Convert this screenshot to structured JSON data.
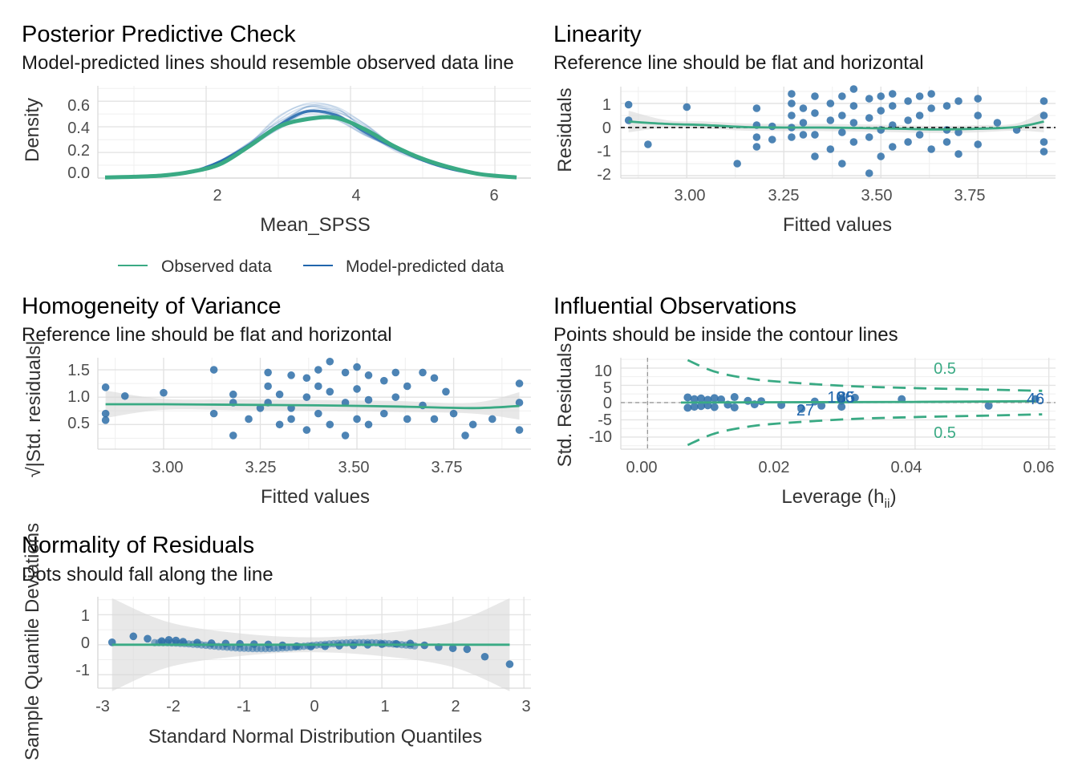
{
  "colors": {
    "observed": "#3aaa84",
    "predicted": "#2166ac",
    "points": "#2e6fa8",
    "smooth": "#3aaa84",
    "band": "#d8d8d8",
    "contour": "#3aaa84"
  },
  "panels": {
    "ppc": {
      "title": "Posterior Predictive Check",
      "subtitle": "Model-predicted lines should resemble observed data line",
      "xlabel": "Mean_SPSS",
      "ylabel": "Density",
      "xticks": [
        "2",
        "4",
        "6"
      ],
      "yticks": [
        "0.0",
        "0.2",
        "0.4",
        "0.6"
      ],
      "legend": [
        "Observed data",
        "Model-predicted data"
      ]
    },
    "linearity": {
      "title": "Linearity",
      "subtitle": "Reference line should be flat and horizontal",
      "xlabel": "Fitted values",
      "ylabel": "Residuals",
      "xticks": [
        "3.00",
        "3.25",
        "3.50",
        "3.75"
      ],
      "yticks": [
        "-2",
        "-1",
        "0",
        "1"
      ]
    },
    "homogeneity": {
      "title": "Homogeneity of Variance",
      "subtitle": "Reference line should be flat and horizontal",
      "xlabel": "Fitted values",
      "ylabel": "√|Std. residuals|",
      "xticks": [
        "3.00",
        "3.25",
        "3.50",
        "3.75"
      ],
      "yticks": [
        "0.5",
        "1.0",
        "1.5"
      ]
    },
    "influential": {
      "title": "Influential Observations",
      "subtitle": "Points should be inside the contour lines",
      "xlabel": "Leverage (h",
      "xlabel_sub": "ii",
      "xlabel_end": ")",
      "ylabel": "Std. Residuals",
      "xticks": [
        "0.00",
        "0.02",
        "0.04",
        "0.06"
      ],
      "yticks": [
        "-10",
        "-5",
        "0",
        "5",
        "10"
      ],
      "contour_labels": [
        "0.5",
        "0.5"
      ],
      "point_labels": [
        "27",
        "46",
        "85",
        "106"
      ]
    },
    "normality": {
      "title": "Normality of Residuals",
      "subtitle": "Dots should fall along the line",
      "xlabel": "Standard Normal Distribution Quantiles",
      "ylabel": "Sample Quantile Deviations",
      "xticks": [
        "-3",
        "-2",
        "-1",
        "0",
        "1",
        "2",
        "3"
      ],
      "yticks": [
        "-1",
        "0",
        "1"
      ]
    }
  },
  "chart_data": [
    {
      "type": "line",
      "panel": "ppc",
      "xlim": [
        0.5,
        6.5
      ],
      "ylim": [
        0,
        0.72
      ],
      "x": [
        0.6,
        1.0,
        1.4,
        1.8,
        2.2,
        2.6,
        3.0,
        3.4,
        3.8,
        4.2,
        4.6,
        5.0,
        5.4,
        5.8,
        6.3
      ],
      "series": [
        {
          "name": "Observed data",
          "values": [
            0.005,
            0.01,
            0.02,
            0.05,
            0.11,
            0.25,
            0.4,
            0.46,
            0.47,
            0.38,
            0.25,
            0.15,
            0.08,
            0.03,
            0.005
          ]
        },
        {
          "name": "Model-predicted data",
          "values": [
            0.005,
            0.01,
            0.02,
            0.05,
            0.13,
            0.26,
            0.41,
            0.52,
            0.49,
            0.36,
            0.24,
            0.14,
            0.07,
            0.03,
            0.005
          ]
        }
      ]
    },
    {
      "type": "scatter",
      "panel": "linearity",
      "xlim": [
        2.83,
        3.95
      ],
      "ylim": [
        -2.1,
        1.7
      ],
      "reference_line": 0,
      "points": [
        {
          "x": 2.85,
          "y": 0.95
        },
        {
          "x": 2.85,
          "y": 0.3
        },
        {
          "x": 2.9,
          "y": -0.7
        },
        {
          "x": 3.0,
          "y": 0.85
        },
        {
          "x": 3.13,
          "y": -1.5
        },
        {
          "x": 3.18,
          "y": 0.8
        },
        {
          "x": 3.18,
          "y": 0.1
        },
        {
          "x": 3.18,
          "y": -0.4
        },
        {
          "x": 3.18,
          "y": -0.8
        },
        {
          "x": 3.22,
          "y": 0.05
        },
        {
          "x": 3.22,
          "y": -0.5
        },
        {
          "x": 3.27,
          "y": 1.4
        },
        {
          "x": 3.27,
          "y": 1.0
        },
        {
          "x": 3.27,
          "y": 0.5
        },
        {
          "x": 3.27,
          "y": 0.0
        },
        {
          "x": 3.27,
          "y": -0.4
        },
        {
          "x": 3.3,
          "y": 0.8
        },
        {
          "x": 3.3,
          "y": 0.2
        },
        {
          "x": 3.3,
          "y": -0.3
        },
        {
          "x": 3.33,
          "y": 1.3
        },
        {
          "x": 3.33,
          "y": 0.6
        },
        {
          "x": 3.33,
          "y": -0.3
        },
        {
          "x": 3.33,
          "y": -1.2
        },
        {
          "x": 3.37,
          "y": 1.0
        },
        {
          "x": 3.37,
          "y": 0.3
        },
        {
          "x": 3.37,
          "y": -0.9
        },
        {
          "x": 3.4,
          "y": 1.3
        },
        {
          "x": 3.4,
          "y": 0.5
        },
        {
          "x": 3.4,
          "y": -0.2
        },
        {
          "x": 3.4,
          "y": -1.5
        },
        {
          "x": 3.43,
          "y": 1.6
        },
        {
          "x": 3.43,
          "y": 0.9
        },
        {
          "x": 3.43,
          "y": 0.2
        },
        {
          "x": 3.43,
          "y": -0.6
        },
        {
          "x": 3.47,
          "y": 1.2
        },
        {
          "x": 3.47,
          "y": 0.4
        },
        {
          "x": 3.47,
          "y": -0.4
        },
        {
          "x": 3.47,
          "y": -1.9
        },
        {
          "x": 3.5,
          "y": 1.3
        },
        {
          "x": 3.5,
          "y": 0.7
        },
        {
          "x": 3.5,
          "y": -0.1
        },
        {
          "x": 3.5,
          "y": -1.2
        },
        {
          "x": 3.53,
          "y": 1.4
        },
        {
          "x": 3.53,
          "y": 0.9
        },
        {
          "x": 3.53,
          "y": 0.1
        },
        {
          "x": 3.53,
          "y": -0.8
        },
        {
          "x": 3.57,
          "y": 1.1
        },
        {
          "x": 3.57,
          "y": 0.3
        },
        {
          "x": 3.57,
          "y": -0.6
        },
        {
          "x": 3.6,
          "y": 1.3
        },
        {
          "x": 3.6,
          "y": 0.5
        },
        {
          "x": 3.6,
          "y": -0.3
        },
        {
          "x": 3.63,
          "y": 1.4
        },
        {
          "x": 3.63,
          "y": 0.8
        },
        {
          "x": 3.63,
          "y": -0.9
        },
        {
          "x": 3.67,
          "y": 0.9
        },
        {
          "x": 3.67,
          "y": -0.1
        },
        {
          "x": 3.67,
          "y": -0.6
        },
        {
          "x": 3.7,
          "y": 1.1
        },
        {
          "x": 3.7,
          "y": -0.2
        },
        {
          "x": 3.7,
          "y": -1.1
        },
        {
          "x": 3.75,
          "y": 1.2
        },
        {
          "x": 3.75,
          "y": 0.5
        },
        {
          "x": 3.75,
          "y": -0.7
        },
        {
          "x": 3.8,
          "y": 0.2
        },
        {
          "x": 3.85,
          "y": -0.1
        },
        {
          "x": 3.92,
          "y": 1.1
        },
        {
          "x": 3.92,
          "y": 0.5
        },
        {
          "x": 3.92,
          "y": -0.6
        },
        {
          "x": 3.92,
          "y": -1.0
        }
      ],
      "smooth": {
        "x": [
          2.85,
          2.95,
          3.05,
          3.15,
          3.25,
          3.35,
          3.45,
          3.55,
          3.65,
          3.75,
          3.85,
          3.92
        ],
        "y": [
          0.25,
          0.15,
          0.1,
          0.02,
          0.0,
          0.0,
          -0.02,
          -0.05,
          -0.08,
          -0.05,
          0.02,
          0.25
        ]
      }
    },
    {
      "type": "scatter",
      "panel": "homogeneity",
      "xlim": [
        2.83,
        3.95
      ],
      "ylim": [
        0.05,
        1.72
      ],
      "points": [
        {
          "x": 2.85,
          "y": 1.18
        },
        {
          "x": 2.85,
          "y": 0.7
        },
        {
          "x": 2.85,
          "y": 0.58
        },
        {
          "x": 2.9,
          "y": 1.02
        },
        {
          "x": 3.0,
          "y": 1.08
        },
        {
          "x": 3.13,
          "y": 1.5
        },
        {
          "x": 3.13,
          "y": 0.7
        },
        {
          "x": 3.18,
          "y": 1.05
        },
        {
          "x": 3.18,
          "y": 0.9
        },
        {
          "x": 3.18,
          "y": 0.3
        },
        {
          "x": 3.22,
          "y": 0.6
        },
        {
          "x": 3.25,
          "y": 0.8
        },
        {
          "x": 3.27,
          "y": 1.45
        },
        {
          "x": 3.27,
          "y": 1.2
        },
        {
          "x": 3.27,
          "y": 0.9
        },
        {
          "x": 3.3,
          "y": 1.05
        },
        {
          "x": 3.3,
          "y": 0.5
        },
        {
          "x": 3.33,
          "y": 1.4
        },
        {
          "x": 3.33,
          "y": 0.8
        },
        {
          "x": 3.33,
          "y": 0.6
        },
        {
          "x": 3.37,
          "y": 1.35
        },
        {
          "x": 3.37,
          "y": 1.0
        },
        {
          "x": 3.37,
          "y": 0.4
        },
        {
          "x": 3.4,
          "y": 1.5
        },
        {
          "x": 3.4,
          "y": 1.2
        },
        {
          "x": 3.4,
          "y": 0.7
        },
        {
          "x": 3.43,
          "y": 1.65
        },
        {
          "x": 3.43,
          "y": 1.1
        },
        {
          "x": 3.43,
          "y": 0.5
        },
        {
          "x": 3.47,
          "y": 1.45
        },
        {
          "x": 3.47,
          "y": 0.9
        },
        {
          "x": 3.47,
          "y": 0.3
        },
        {
          "x": 3.5,
          "y": 1.55
        },
        {
          "x": 3.5,
          "y": 1.15
        },
        {
          "x": 3.5,
          "y": 0.6
        },
        {
          "x": 3.53,
          "y": 1.4
        },
        {
          "x": 3.53,
          "y": 0.95
        },
        {
          "x": 3.53,
          "y": 0.5
        },
        {
          "x": 3.57,
          "y": 1.3
        },
        {
          "x": 3.57,
          "y": 0.7
        },
        {
          "x": 3.6,
          "y": 1.45
        },
        {
          "x": 3.6,
          "y": 1.0
        },
        {
          "x": 3.63,
          "y": 1.2
        },
        {
          "x": 3.63,
          "y": 0.6
        },
        {
          "x": 3.67,
          "y": 1.45
        },
        {
          "x": 3.67,
          "y": 0.85
        },
        {
          "x": 3.7,
          "y": 1.35
        },
        {
          "x": 3.7,
          "y": 0.6
        },
        {
          "x": 3.73,
          "y": 1.1
        },
        {
          "x": 3.75,
          "y": 0.7
        },
        {
          "x": 3.78,
          "y": 0.3
        },
        {
          "x": 3.8,
          "y": 0.5
        },
        {
          "x": 3.85,
          "y": 0.6
        },
        {
          "x": 3.92,
          "y": 1.25
        },
        {
          "x": 3.92,
          "y": 0.9
        },
        {
          "x": 3.92,
          "y": 0.4
        }
      ],
      "smooth": {
        "x": [
          2.85,
          3.0,
          3.2,
          3.4,
          3.6,
          3.8,
          3.92
        ],
        "y": [
          0.87,
          0.87,
          0.86,
          0.85,
          0.83,
          0.8,
          0.84
        ]
      }
    },
    {
      "type": "scatter",
      "panel": "influential",
      "xlim": [
        -0.004,
        0.061
      ],
      "ylim": [
        -13.5,
        13
      ],
      "points": [
        {
          "x": 0.006,
          "y": 1.5
        },
        {
          "x": 0.006,
          "y": -1.5
        },
        {
          "x": 0.007,
          "y": 1.0
        },
        {
          "x": 0.007,
          "y": -1.2
        },
        {
          "x": 0.008,
          "y": 1.2
        },
        {
          "x": 0.008,
          "y": -1.0
        },
        {
          "x": 0.009,
          "y": 0.8
        },
        {
          "x": 0.009,
          "y": -0.8
        },
        {
          "x": 0.01,
          "y": 1.3
        },
        {
          "x": 0.01,
          "y": -1.3
        },
        {
          "x": 0.011,
          "y": 0.9
        },
        {
          "x": 0.012,
          "y": -0.6
        },
        {
          "x": 0.013,
          "y": 1.6
        },
        {
          "x": 0.013,
          "y": -1.4
        },
        {
          "x": 0.015,
          "y": 0.5
        },
        {
          "x": 0.016,
          "y": -0.5
        },
        {
          "x": 0.017,
          "y": 0.4
        },
        {
          "x": 0.02,
          "y": -0.7
        },
        {
          "x": 0.023,
          "y": -1.8
        },
        {
          "x": 0.025,
          "y": 0.3
        },
        {
          "x": 0.026,
          "y": -0.9
        },
        {
          "x": 0.029,
          "y": 1.3
        },
        {
          "x": 0.029,
          "y": 0.6
        },
        {
          "x": 0.029,
          "y": -1.2
        },
        {
          "x": 0.031,
          "y": 1.4
        },
        {
          "x": 0.038,
          "y": 1.0
        },
        {
          "x": 0.051,
          "y": -0.9
        },
        {
          "x": 0.058,
          "y": 1.0
        }
      ],
      "smooth": {
        "x": [
          0.005,
          0.02,
          0.04,
          0.058
        ],
        "y": [
          0.0,
          0.1,
          0.2,
          0.4
        ]
      },
      "contour_0_5": {
        "x": [
          0.006,
          0.01,
          0.015,
          0.02,
          0.03,
          0.04,
          0.05,
          0.059
        ],
        "upper": [
          12.3,
          9.0,
          7.0,
          6.0,
          4.8,
          4.2,
          3.8,
          3.4
        ],
        "lower": [
          -12.3,
          -9.0,
          -7.0,
          -6.0,
          -4.8,
          -4.2,
          -3.8,
          -3.4
        ]
      },
      "labeled_points": [
        {
          "label": "27",
          "x": 0.0235,
          "y": -2.5
        },
        {
          "label": "46",
          "x": 0.0585,
          "y": 1.0
        },
        {
          "label": "85",
          "x": 0.0305,
          "y": 1.3
        },
        {
          "label": "106",
          "x": 0.0295,
          "y": 1.3
        }
      ]
    },
    {
      "type": "scatter",
      "panel": "normality",
      "xlim": [
        -3.0,
        3.1
      ],
      "ylim": [
        -1.45,
        1.6
      ],
      "points": [
        {
          "x": -2.8,
          "y": 0.08
        },
        {
          "x": -2.5,
          "y": 0.28
        },
        {
          "x": -2.3,
          "y": 0.2
        },
        {
          "x": -2.1,
          "y": 0.12
        },
        {
          "x": -2.0,
          "y": 0.16
        },
        {
          "x": -1.9,
          "y": 0.14
        },
        {
          "x": -1.8,
          "y": 0.1
        },
        {
          "x": -1.6,
          "y": 0.07
        },
        {
          "x": -1.4,
          "y": 0.05
        },
        {
          "x": -1.2,
          "y": 0.04
        },
        {
          "x": -1.0,
          "y": 0.03
        },
        {
          "x": -0.8,
          "y": 0.02
        },
        {
          "x": -0.6,
          "y": 0.01
        },
        {
          "x": -0.4,
          "y": -0.02
        },
        {
          "x": -0.2,
          "y": -0.05
        },
        {
          "x": 0.0,
          "y": -0.06
        },
        {
          "x": 0.2,
          "y": -0.05
        },
        {
          "x": 0.4,
          "y": -0.03
        },
        {
          "x": 0.6,
          "y": -0.02
        },
        {
          "x": 0.8,
          "y": 0.0
        },
        {
          "x": 1.0,
          "y": 0.02
        },
        {
          "x": 1.2,
          "y": 0.03
        },
        {
          "x": 1.4,
          "y": 0.04
        },
        {
          "x": 1.6,
          "y": -0.02
        },
        {
          "x": 1.8,
          "y": -0.08
        },
        {
          "x": 2.0,
          "y": -0.12
        },
        {
          "x": 2.2,
          "y": -0.15
        },
        {
          "x": 2.45,
          "y": -0.4
        },
        {
          "x": 2.8,
          "y": -0.65
        }
      ],
      "reference_line": 0
    }
  ]
}
